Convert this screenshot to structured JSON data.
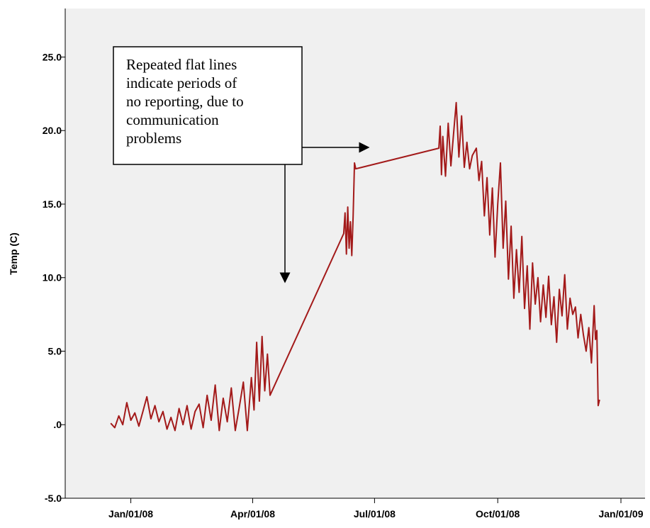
{
  "chart_data": {
    "type": "line",
    "y_label": "Temp (C)",
    "annotation_lines": [
      "Repeated flat lines",
      "indicate periods of",
      "no reporting, due to",
      "communication",
      "problems"
    ],
    "color": "#a31a1a",
    "xlim": [
      "2007-11-13",
      "2009-01-19"
    ],
    "xticks": [
      {
        "value": "2008-01-01",
        "label": "Jan/01/08"
      },
      {
        "value": "2008-04-01",
        "label": "Apr/01/08"
      },
      {
        "value": "2008-07-01",
        "label": "Jul/01/08"
      },
      {
        "value": "2008-10-01",
        "label": "Oct/01/08"
      },
      {
        "value": "2009-01-01",
        "label": "Jan/01/09"
      }
    ],
    "ylim": [
      -5,
      28.3
    ],
    "yticks": [
      {
        "value": -5,
        "label": "-5.0"
      },
      {
        "value": 0,
        "label": ".0"
      },
      {
        "value": 5,
        "label": "5.0"
      },
      {
        "value": 10,
        "label": "10.0"
      },
      {
        "value": 15,
        "label": "15.0"
      },
      {
        "value": 20,
        "label": "20.0"
      },
      {
        "value": 25,
        "label": "25.0"
      }
    ],
    "x": [
      "2007-12-17",
      "2007-12-20",
      "2007-12-23",
      "2007-12-26",
      "2007-12-29",
      "2008-01-01",
      "2008-01-04",
      "2008-01-07",
      "2008-01-10",
      "2008-01-13",
      "2008-01-16",
      "2008-01-19",
      "2008-01-22",
      "2008-01-25",
      "2008-01-28",
      "2008-01-31",
      "2008-02-03",
      "2008-02-06",
      "2008-02-09",
      "2008-02-12",
      "2008-02-15",
      "2008-02-18",
      "2008-02-21",
      "2008-02-24",
      "2008-02-27",
      "2008-03-01",
      "2008-03-04",
      "2008-03-07",
      "2008-03-10",
      "2008-03-13",
      "2008-03-16",
      "2008-03-19",
      "2008-03-22",
      "2008-03-25",
      "2008-03-28",
      "2008-03-31",
      "2008-04-02",
      "2008-04-04",
      "2008-04-06",
      "2008-04-08",
      "2008-04-10",
      "2008-04-12",
      "2008-04-14",
      "2008-06-08",
      "2008-06-09",
      "2008-06-10",
      "2008-06-11",
      "2008-06-12",
      "2008-06-13",
      "2008-06-14",
      "2008-06-15",
      "2008-06-16",
      "2008-06-17",
      "2008-08-18",
      "2008-08-19",
      "2008-08-20",
      "2008-08-21",
      "2008-08-23",
      "2008-08-25",
      "2008-08-27",
      "2008-08-29",
      "2008-08-31",
      "2008-09-02",
      "2008-09-04",
      "2008-09-06",
      "2008-09-08",
      "2008-09-10",
      "2008-09-12",
      "2008-09-15",
      "2008-09-17",
      "2008-09-19",
      "2008-09-21",
      "2008-09-23",
      "2008-09-25",
      "2008-09-27",
      "2008-09-29",
      "2008-10-01",
      "2008-10-03",
      "2008-10-05",
      "2008-10-07",
      "2008-10-09",
      "2008-10-11",
      "2008-10-13",
      "2008-10-15",
      "2008-10-17",
      "2008-10-19",
      "2008-10-21",
      "2008-10-23",
      "2008-10-25",
      "2008-10-27",
      "2008-10-29",
      "2008-10-31",
      "2008-11-02",
      "2008-11-04",
      "2008-11-06",
      "2008-11-08",
      "2008-11-10",
      "2008-11-12",
      "2008-11-14",
      "2008-11-16",
      "2008-11-18",
      "2008-11-20",
      "2008-11-22",
      "2008-11-24",
      "2008-11-26",
      "2008-11-28",
      "2008-11-30",
      "2008-12-02",
      "2008-12-04",
      "2008-12-06",
      "2008-12-08",
      "2008-12-10",
      "2008-12-12",
      "2008-12-13",
      "2008-12-14",
      "2008-12-15",
      "2008-12-16"
    ],
    "values": [
      0.1,
      -0.2,
      0.6,
      0.0,
      1.5,
      0.3,
      0.8,
      -0.1,
      0.9,
      1.9,
      0.4,
      1.3,
      0.2,
      0.9,
      -0.3,
      0.5,
      -0.4,
      1.1,
      0.0,
      1.3,
      -0.3,
      0.9,
      1.4,
      -0.2,
      2.0,
      0.3,
      2.7,
      -0.4,
      1.8,
      0.2,
      2.5,
      -0.4,
      1.2,
      2.9,
      -0.4,
      3.2,
      1.0,
      5.6,
      1.6,
      6.0,
      2.3,
      4.8,
      2.0,
      13.0,
      14.4,
      11.6,
      14.8,
      12.0,
      13.8,
      11.5,
      14.2,
      17.8,
      17.4,
      18.8,
      20.3,
      17.0,
      19.6,
      16.9,
      20.5,
      17.6,
      19.8,
      21.9,
      18.2,
      21.0,
      17.5,
      19.2,
      17.4,
      18.3,
      18.8,
      16.6,
      17.9,
      14.2,
      16.8,
      12.9,
      16.1,
      11.4,
      15.0,
      17.8,
      12.0,
      15.2,
      9.9,
      13.5,
      8.6,
      11.9,
      9.0,
      12.8,
      7.9,
      10.8,
      6.5,
      11.0,
      8.2,
      10.0,
      7.0,
      9.5,
      7.3,
      10.1,
      6.8,
      8.7,
      5.6,
      9.2,
      7.4,
      10.2,
      6.5,
      8.6,
      7.5,
      8.0,
      5.9,
      7.5,
      6.1,
      5.0,
      6.6,
      4.2,
      8.1,
      5.8,
      6.4,
      1.3,
      1.7
    ]
  }
}
